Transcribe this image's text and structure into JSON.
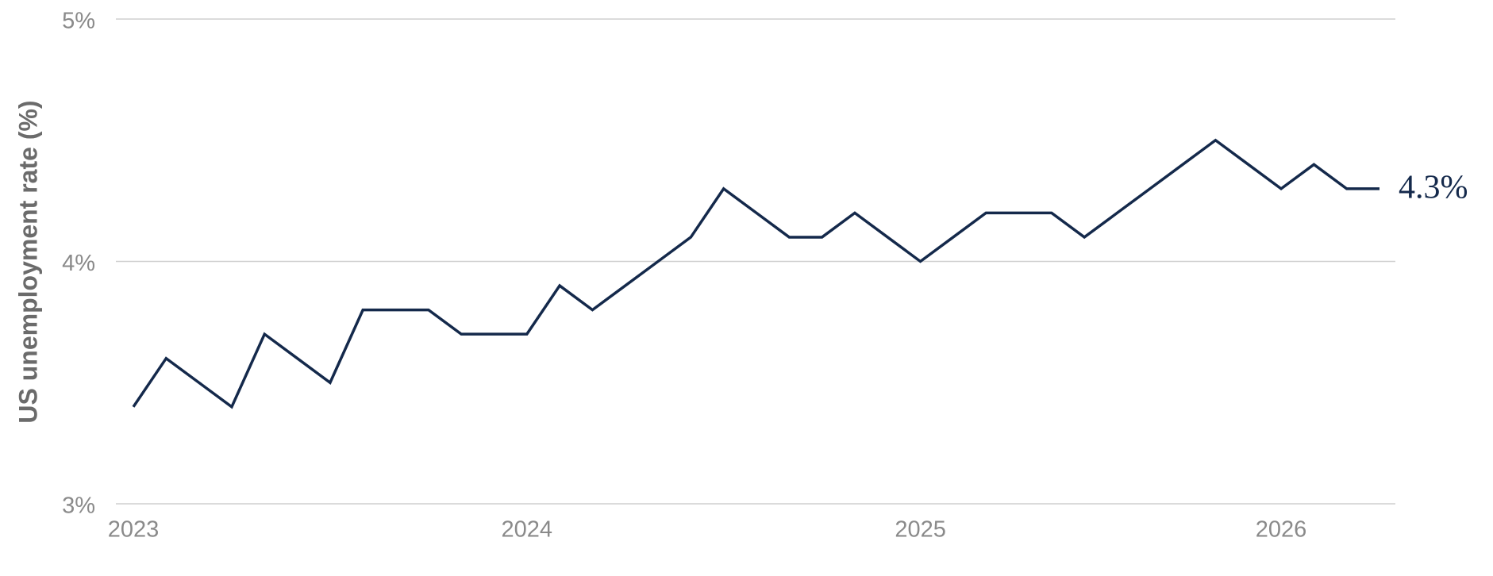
{
  "chart_data": {
    "type": "line",
    "y_label": "US unemployment rate (%)",
    "categories": [
      "2023",
      null,
      null,
      null,
      null,
      null,
      null,
      null,
      null,
      null,
      null,
      null,
      "2024",
      null,
      null,
      null,
      null,
      null,
      null,
      null,
      null,
      null,
      null,
      null,
      "2025",
      null,
      null,
      null,
      null,
      null,
      null,
      null,
      null,
      null,
      null,
      "2026",
      null,
      null,
      null
    ],
    "series": [
      {
        "color": "#14294b",
        "values": [
          3.4,
          3.6,
          3.5,
          3.4,
          3.7,
          3.6,
          3.5,
          3.8,
          3.8,
          3.8,
          3.7,
          3.7,
          3.7,
          3.9,
          3.8,
          3.9,
          4.0,
          4.1,
          4.3,
          4.2,
          4.1,
          4.1,
          4.2,
          4.1,
          4.0,
          4.1,
          4.2,
          4.2,
          4.2,
          4.1,
          4.2,
          4.3,
          4.4,
          4.5,
          4.4,
          4.3,
          4.4,
          4.3,
          4.3
        ]
      }
    ],
    "end_label": "4.3%",
    "ylim": [
      3,
      5
    ],
    "yticks": [
      {
        "value": 3,
        "label": "3%"
      },
      {
        "value": 4,
        "label": "4%"
      },
      {
        "value": 5,
        "label": "5%"
      }
    ],
    "grid": true
  }
}
